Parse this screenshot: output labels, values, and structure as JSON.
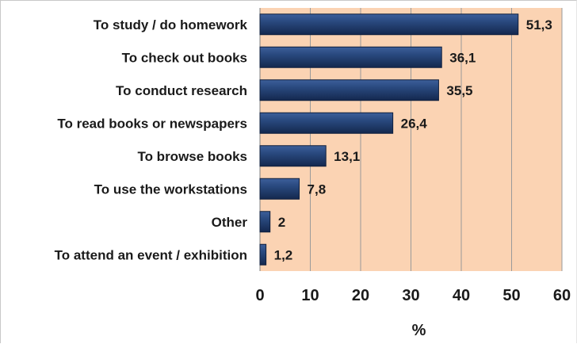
{
  "chart_data": {
    "type": "bar",
    "orientation": "horizontal",
    "categories": [
      "To study / do homework",
      "To check out books",
      "To conduct research",
      "To read books or newspapers",
      "To browse books",
      "To use the workstations",
      "Other",
      "To attend an event / exhibition"
    ],
    "values": [
      51.3,
      36.1,
      35.5,
      26.4,
      13.1,
      7.8,
      2,
      1.2
    ],
    "value_labels": [
      "51,3",
      "36,1",
      "35,5",
      "26,4",
      "13,1",
      "7,8",
      "2",
      "1,2"
    ],
    "xlabel": "%",
    "xlim": [
      0,
      60
    ],
    "x_ticks": [
      0,
      10,
      20,
      30,
      40,
      50,
      60
    ],
    "x_tick_labels": [
      "0",
      "10",
      "20",
      "30",
      "40",
      "50",
      "60"
    ],
    "grid": true,
    "legend": "none",
    "colors": {
      "plot_background": "#fbd3b3",
      "bar_fill": "#1f3864",
      "gridline": "#9a9a9a"
    }
  }
}
